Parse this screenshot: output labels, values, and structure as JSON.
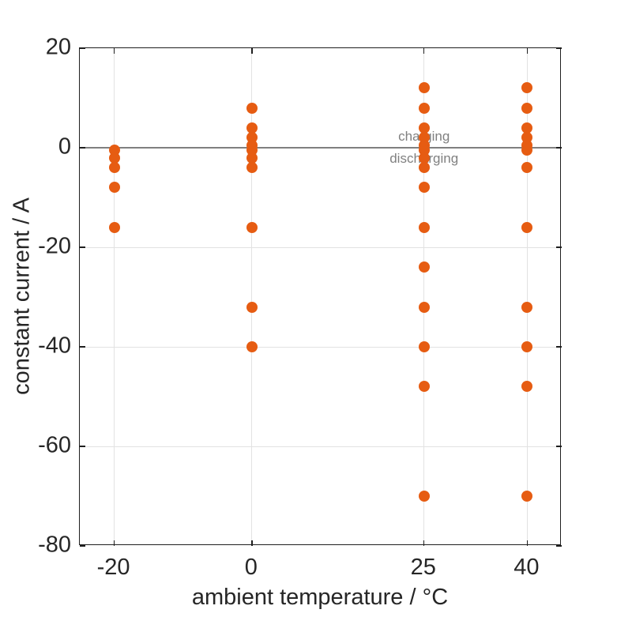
{
  "figure": {
    "background": "#ffffff",
    "axis_color": "#1f1f1f",
    "grid_color": "#e2e2e2"
  },
  "chart_data": {
    "type": "scatter",
    "title": "",
    "xlabel": "ambient temperature / °C",
    "ylabel": "constant current / A",
    "xlim": [
      -25,
      45
    ],
    "ylim": [
      -80,
      20
    ],
    "xticks": [
      -20,
      0,
      25,
      40
    ],
    "yticks": [
      20,
      0,
      -20,
      -40,
      -60,
      -80
    ],
    "grid": true,
    "legend": "none",
    "marker_color": "#e65c12",
    "marker_diameter_px": 14,
    "zero_line": {
      "y": 0,
      "color": "#808080",
      "label_above": "charging",
      "label_below": "discharging",
      "label_color": "#808080",
      "label_x": 25
    },
    "series": [
      {
        "name": "-20 °C",
        "x": -20,
        "currents": [
          -0.5,
          -2,
          -4,
          -8,
          -16
        ]
      },
      {
        "name": "0 °C",
        "x": 0,
        "currents": [
          8,
          4,
          2,
          0.5,
          -0.5,
          -2,
          -4,
          -16,
          -32,
          -40
        ]
      },
      {
        "name": "25 °C",
        "x": 25,
        "currents": [
          12,
          8,
          4,
          2,
          0.5,
          -0.5,
          -2,
          -4,
          -8,
          -16,
          -24,
          -32,
          -40,
          -48,
          -70
        ]
      },
      {
        "name": "40 °C",
        "x": 40,
        "currents": [
          12,
          8,
          4,
          2,
          0.5,
          -0.5,
          -4,
          -16,
          -32,
          -40,
          -48,
          -70
        ]
      }
    ]
  }
}
